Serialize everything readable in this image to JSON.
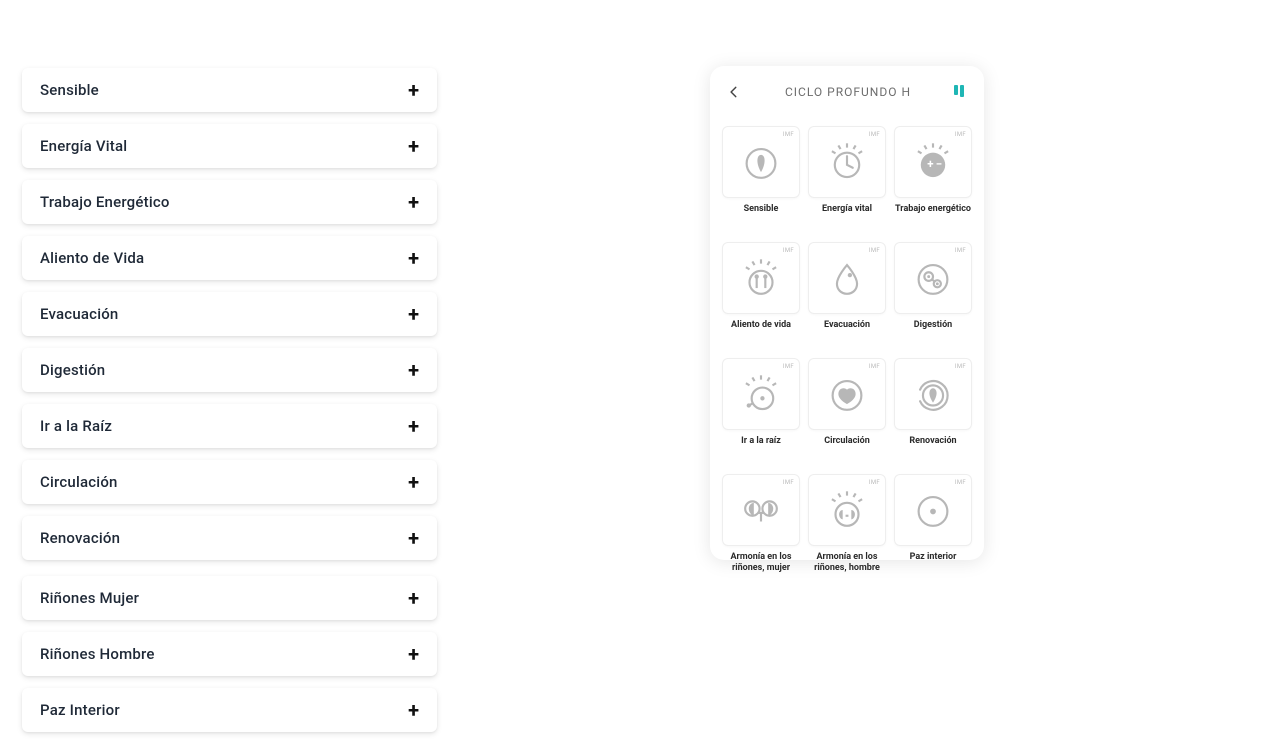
{
  "accordion": {
    "items": [
      {
        "label": "Sensible",
        "spaced": false
      },
      {
        "label": "Energía Vital",
        "spaced": false
      },
      {
        "label": "Trabajo Energético",
        "spaced": false
      },
      {
        "label": "Aliento de Vida",
        "spaced": false
      },
      {
        "label": "Evacuación",
        "spaced": false
      },
      {
        "label": "Digestión",
        "spaced": false
      },
      {
        "label": "Ir a la Raíz",
        "spaced": false
      },
      {
        "label": "Circulación",
        "spaced": false
      },
      {
        "label": "Renovación",
        "spaced": false
      },
      {
        "label": "Riñones Mujer",
        "spaced": true
      },
      {
        "label": "Riñones Hombre",
        "spaced": false
      },
      {
        "label": "Paz Interior",
        "spaced": false
      }
    ],
    "plus_glyph": "+"
  },
  "phone": {
    "title": "CICLO PROFUNDO H",
    "badge": "IMF",
    "tiles": [
      {
        "icon": "sensible",
        "caption": "Sensible"
      },
      {
        "icon": "energia-vital",
        "caption": "Energía vital"
      },
      {
        "icon": "trabajo-energetico",
        "caption": "Trabajo energético"
      },
      {
        "icon": "aliento-de-vida",
        "caption": "Aliento de vida"
      },
      {
        "icon": "evacuacion",
        "caption": "Evacuación"
      },
      {
        "icon": "digestion",
        "caption": "Digestión"
      },
      {
        "icon": "ir-a-la-raiz",
        "caption": "Ir a la raíz"
      },
      {
        "icon": "circulacion",
        "caption": "Circulación"
      },
      {
        "icon": "renovacion",
        "caption": "Renovación"
      },
      {
        "icon": "rinones-mujer",
        "caption": "Armonía en los riñones, mujer"
      },
      {
        "icon": "rinones-hombre",
        "caption": "Armonía en los riñones, hombre"
      },
      {
        "icon": "paz-interior",
        "caption": "Paz interior"
      }
    ]
  },
  "colors": {
    "icon_gray": "#b7b7b7",
    "accent_teal": "#1fb6b5",
    "text_dark": "#1f2937",
    "tile_border": "#eeeeee"
  }
}
